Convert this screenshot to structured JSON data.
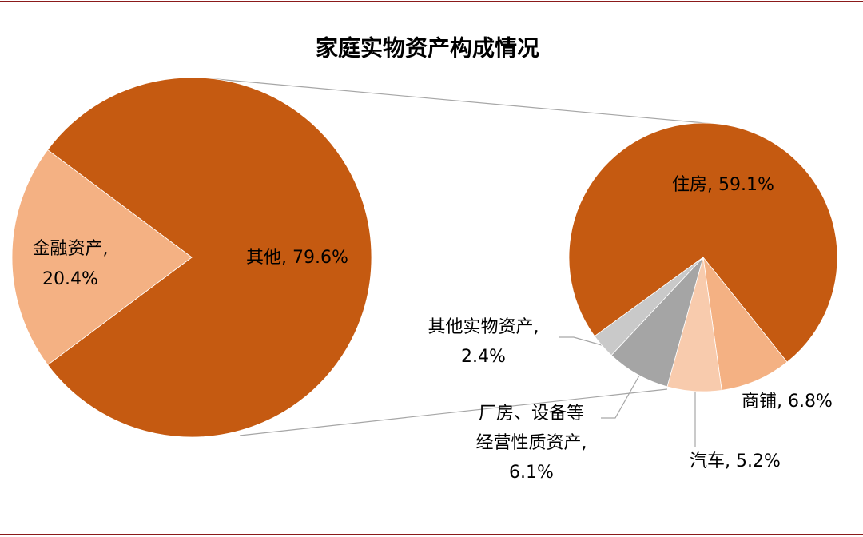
{
  "chart_data": {
    "type": "pie-of-pie",
    "title": "家庭实物资产构成情况",
    "pie": {
      "values": [
        79.6,
        20.4
      ],
      "colors": [
        "#C55A11",
        "#F4B183"
      ],
      "value_labels": [
        [
          "其他, 79.6%"
        ],
        [
          "金融资产,",
          "20.4%"
        ]
      ]
    },
    "sub_pie": {
      "values": [
        59.1,
        6.8,
        5.2,
        6.1,
        2.4
      ],
      "colors": [
        "#C55A11",
        "#F4B183",
        "#F8CBAD",
        "#A5A5A5",
        "#C9C9C9"
      ],
      "value_labels": [
        [
          "住房, 59.1%"
        ],
        [
          "商铺, 6.8%"
        ],
        [
          "汽车, 5.2%"
        ],
        [
          "厂房、设备等",
          "经营性质资产,",
          "6.1%"
        ],
        [
          "其他实物资产,",
          "2.4%"
        ]
      ]
    }
  }
}
